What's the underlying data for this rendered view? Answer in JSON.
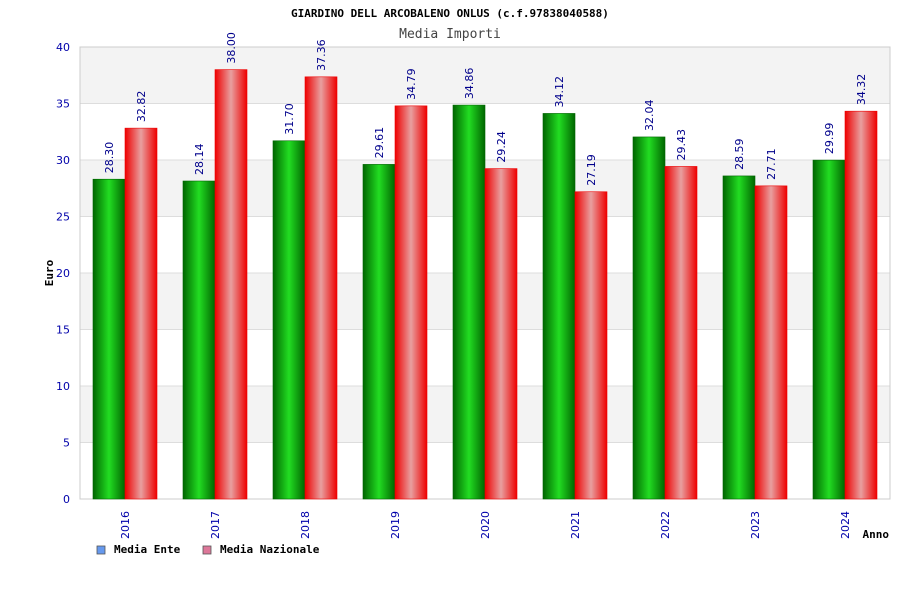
{
  "colors": {
    "ente_dark": "#006600",
    "ente_light": "#22dd22",
    "naz_dark": "#ee0000",
    "naz_light": "#e8a0a0",
    "legend_ente": "#6699ee",
    "legend_naz": "#dd7799",
    "axis_text": "#0000aa",
    "band": "#f3f3f3"
  },
  "chart_data": {
    "type": "bar",
    "title": "GIARDINO DELL ARCOBALENO ONLUS (c.f.97838040588)",
    "subtitle": "Media Importi",
    "xlabel": "Anno",
    "ylabel": "Euro",
    "ylim": [
      0,
      40
    ],
    "yticks": [
      "0",
      "5",
      "10",
      "15",
      "20",
      "25",
      "30",
      "35",
      "40"
    ],
    "grid": true,
    "legend_position": "bottom-left",
    "categories": [
      "2016",
      "2017",
      "2018",
      "2019",
      "2020",
      "2021",
      "2022",
      "2023",
      "2024"
    ],
    "series": [
      {
        "name": "Media Ente",
        "values": [
          28.3,
          28.14,
          31.7,
          29.61,
          34.86,
          34.12,
          32.04,
          28.59,
          29.99
        ],
        "labels": [
          "28.30",
          "28.14",
          "31.70",
          "29.61",
          "34.86",
          "34.12",
          "32.04",
          "28.59",
          "29.99"
        ]
      },
      {
        "name": "Media Nazionale",
        "values": [
          32.82,
          38.0,
          37.36,
          34.79,
          29.24,
          27.19,
          29.43,
          27.71,
          34.32
        ],
        "labels": [
          "32.82",
          "38.00",
          "37.36",
          "34.79",
          "29.24",
          "27.19",
          "29.43",
          "27.71",
          "34.32"
        ]
      }
    ]
  }
}
